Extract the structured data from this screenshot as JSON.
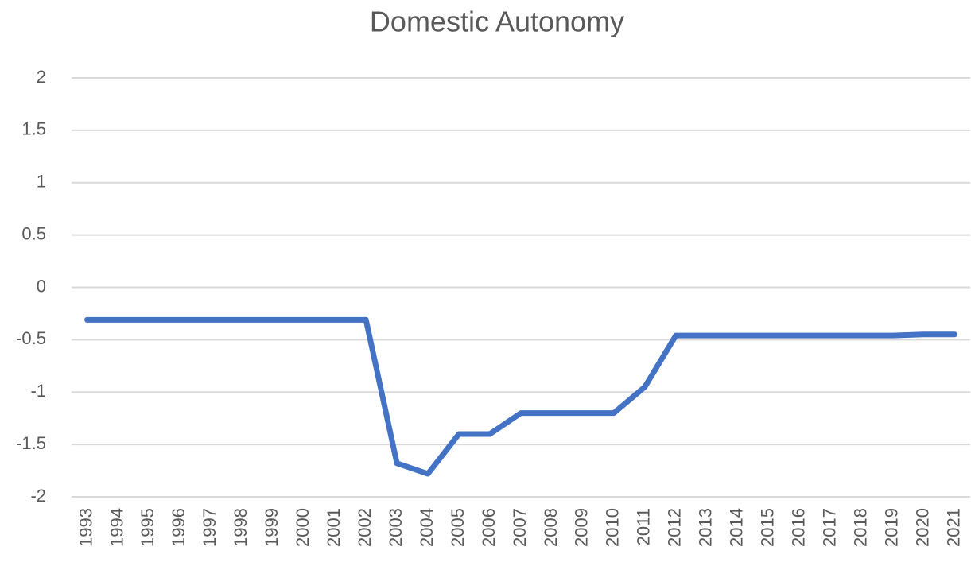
{
  "chart_data": {
    "type": "line",
    "title": "Domestic Autonomy",
    "categories": [
      "1993",
      "1994",
      "1995",
      "1996",
      "1997",
      "1998",
      "1999",
      "2000",
      "2001",
      "2002",
      "2003",
      "2004",
      "2005",
      "2006",
      "2007",
      "2008",
      "2009",
      "2010",
      "2011",
      "2012",
      "2013",
      "2014",
      "2015",
      "2016",
      "2017",
      "2018",
      "2019",
      "2020",
      "2021"
    ],
    "series": [
      {
        "name": "Domestic Autonomy",
        "color": "#4472c4",
        "values": [
          -0.31,
          -0.31,
          -0.31,
          -0.31,
          -0.31,
          -0.31,
          -0.31,
          -0.31,
          -0.31,
          -0.31,
          -1.68,
          -1.78,
          -1.4,
          -1.4,
          -1.2,
          -1.2,
          -1.2,
          -1.2,
          -0.95,
          -0.46,
          -0.46,
          -0.46,
          -0.46,
          -0.46,
          -0.46,
          -0.46,
          -0.46,
          -0.45,
          -0.45
        ]
      }
    ],
    "ylim": [
      -2,
      2
    ],
    "yticks": [
      -2,
      -1.5,
      -1,
      -0.5,
      0,
      0.5,
      1,
      1.5,
      2
    ],
    "grid": true
  }
}
